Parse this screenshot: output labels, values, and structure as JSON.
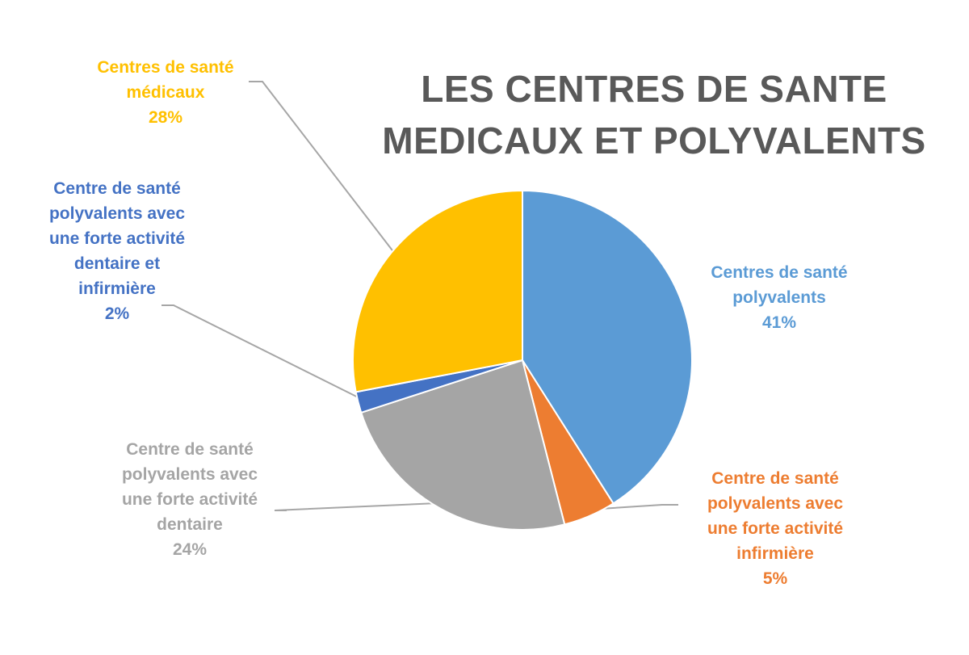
{
  "chart_data": {
    "type": "pie",
    "title": [
      "LES CENTRES DE SANTE",
      "MEDICAUX ET POLYVALENTS"
    ],
    "slices": [
      {
        "key": "polyvalents",
        "label": [
          "Centres de santé",
          "polyvalents"
        ],
        "value": 41,
        "value_label": "41%",
        "color": "#5B9BD5"
      },
      {
        "key": "infirmiere",
        "label": [
          "Centre de santé",
          "polyvalents avec",
          "une forte activité",
          "infirmière"
        ],
        "value": 5,
        "value_label": "5%",
        "color": "#ED7D31"
      },
      {
        "key": "dentaire",
        "label": [
          "Centre de santé",
          "polyvalents avec",
          "une forte activité",
          "dentaire"
        ],
        "value": 24,
        "value_label": "24%",
        "color": "#A5A5A5"
      },
      {
        "key": "dentaire-infirmiere",
        "label": [
          "Centre de santé",
          "polyvalents avec",
          "une forte activité",
          "dentaire et",
          "infirmière"
        ],
        "value": 2,
        "value_label": "2%",
        "color": "#4472C4"
      },
      {
        "key": "medicaux",
        "label": [
          "Centres de santé",
          "médicaux"
        ],
        "value": 28,
        "value_label": "28%",
        "color": "#FFC000"
      }
    ],
    "legend": "none"
  }
}
